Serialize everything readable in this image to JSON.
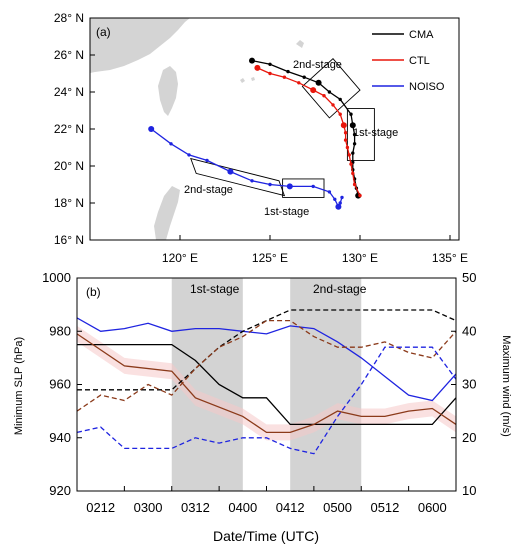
{
  "colors": {
    "cma": "#000000",
    "ctl": "#e8160c",
    "noiso": "#1f24e0",
    "land": "#d4d4d4",
    "stage_shade": "#d3d3d3",
    "slp_solid": "#8b3a1a",
    "ctl_band": "#f6c9c9"
  },
  "chart_data": [
    {
      "type": "map",
      "panel_label": "(a)",
      "xlim": [
        115,
        135.5
      ],
      "ylim": [
        16,
        28
      ],
      "xticks": [
        120,
        125,
        130,
        135
      ],
      "xtick_labels": [
        "120° E",
        "125° E",
        "130° E",
        "135° E"
      ],
      "yticks": [
        16,
        18,
        20,
        22,
        24,
        26,
        28
      ],
      "ytick_labels": [
        "16° N",
        "18° N",
        "20° N",
        "22° N",
        "24° N",
        "26° N",
        "28° N"
      ],
      "legend": [
        {
          "key": "cma",
          "label": "CMA"
        },
        {
          "key": "ctl",
          "label": "CTL"
        },
        {
          "key": "noiso",
          "label": "NOISO"
        }
      ],
      "stage_boxes": [
        {
          "label": "1st-stage",
          "corners": [
            [
              129.3,
              20.3
            ],
            [
              130.8,
              20.3
            ],
            [
              130.8,
              23.1
            ],
            [
              129.3,
              23.1
            ]
          ]
        },
        {
          "label": "2nd-stage",
          "corners": [
            [
              126.8,
              24.3
            ],
            [
              128.3,
              22.6
            ],
            [
              130.0,
              24.1
            ],
            [
              128.5,
              25.8
            ]
          ]
        },
        {
          "label": "2nd-stage",
          "corners": [
            [
              120.6,
              20.4
            ],
            [
              125.5,
              19.2
            ],
            [
              125.8,
              18.4
            ],
            [
              120.9,
              19.6
            ]
          ]
        },
        {
          "label": "1st-stage",
          "corners": [
            [
              125.7,
              19.3
            ],
            [
              128.0,
              19.3
            ],
            [
              128.0,
              18.3
            ],
            [
              125.7,
              18.3
            ]
          ]
        }
      ],
      "series": [
        {
          "key": "cma",
          "name": "CMA",
          "lon": [
            129.9,
            129.8,
            129.7,
            129.6,
            129.6,
            129.6,
            129.7,
            129.7,
            129.6,
            129.5,
            128.9,
            128.3,
            127.7,
            126.9,
            126.0,
            125.0,
            124.0
          ],
          "lat": [
            18.4,
            18.8,
            19.3,
            19.8,
            20.2,
            20.7,
            21.2,
            21.7,
            22.2,
            22.8,
            23.6,
            24.0,
            24.5,
            24.8,
            25.1,
            25.5,
            25.7
          ],
          "big_markers": [
            0,
            8,
            12,
            16
          ]
        },
        {
          "key": "ctl",
          "name": "CTL",
          "lon": [
            130.0,
            129.7,
            129.6,
            129.5,
            129.4,
            129.3,
            129.2,
            129.2,
            129.1,
            128.9,
            128.5,
            128.0,
            127.4,
            126.6,
            125.8,
            125.0,
            124.3
          ],
          "lat": [
            18.4,
            19.0,
            19.6,
            20.1,
            20.6,
            21.0,
            21.4,
            21.8,
            22.2,
            22.8,
            23.3,
            23.8,
            24.1,
            24.5,
            24.8,
            25.0,
            25.3
          ],
          "big_markers": [
            8,
            12,
            16
          ]
        },
        {
          "key": "noiso",
          "name": "NOISO",
          "lon": [
            129.0,
            128.9,
            128.8,
            128.6,
            128.3,
            127.4,
            126.1,
            125.0,
            124.0,
            122.8,
            121.5,
            120.5,
            119.5,
            118.4
          ],
          "lat": [
            18.3,
            18.0,
            17.8,
            18.2,
            18.6,
            18.9,
            18.9,
            19.0,
            19.2,
            19.7,
            20.3,
            20.6,
            21.2,
            22.0
          ],
          "big_markers": [
            2,
            6,
            9,
            13
          ]
        }
      ]
    },
    {
      "type": "line",
      "panel_label": "(b)",
      "xlabel": "Date/Time (UTC)",
      "ylabel": "Minimum SLP (hPa)",
      "ylabel_right": "Maximum wind (m/s)",
      "xticks": [
        0,
        4,
        8,
        12,
        16,
        20,
        24,
        28,
        32
      ],
      "xtick_labels": [
        "0212",
        "0300",
        "0312",
        "0400",
        "0412",
        "0500",
        "0512",
        "0600"
      ],
      "xtick_label_positions": [
        2,
        6,
        10,
        14,
        18,
        22,
        26,
        30
      ],
      "xlim": [
        0,
        32
      ],
      "ylim": [
        920,
        1000
      ],
      "yticks": [
        920,
        940,
        960,
        980,
        1000
      ],
      "ylim_right": [
        10,
        50
      ],
      "yticks_right": [
        10,
        20,
        30,
        40,
        50
      ],
      "stages": [
        {
          "label": "1st-stage",
          "x": [
            8,
            14
          ]
        },
        {
          "label": "2nd-stage",
          "x": [
            18,
            24
          ]
        }
      ],
      "series": [
        {
          "key": "cma_slp",
          "axis": "left",
          "dash": false,
          "color": "#000000",
          "x": [
            0,
            8,
            10,
            12,
            14,
            16,
            18,
            20,
            22,
            24,
            26,
            28,
            30,
            32
          ],
          "y": [
            975,
            975,
            969,
            960,
            955,
            955,
            945,
            945,
            945,
            945,
            945,
            945,
            945,
            955
          ]
        },
        {
          "key": "ctl_slp",
          "axis": "left",
          "dash": false,
          "color": "#8b3a1a",
          "x": [
            0,
            4,
            8,
            10,
            14,
            16,
            18,
            20,
            22,
            24,
            26,
            28,
            30,
            32
          ],
          "y": [
            979,
            967,
            965,
            955,
            948,
            942,
            942,
            945,
            950,
            948,
            948,
            950,
            951,
            945
          ]
        },
        {
          "key": "noiso_slp",
          "axis": "left",
          "dash": false,
          "color": "#1f24e0",
          "x": [
            0,
            2,
            4,
            6,
            8,
            10,
            12,
            14,
            16,
            18,
            20,
            22,
            24,
            26,
            28,
            30,
            32
          ],
          "y": [
            985,
            980,
            981,
            983,
            980,
            981,
            981,
            980,
            979,
            982,
            981,
            976,
            970,
            963,
            956,
            954,
            964
          ]
        },
        {
          "key": "cma_wind",
          "axis": "right",
          "dash": true,
          "color": "#000000",
          "x": [
            0,
            8,
            12,
            14,
            16,
            18,
            20,
            22,
            24,
            26,
            28,
            30,
            32
          ],
          "y": [
            29,
            29,
            37,
            40,
            42,
            44,
            44,
            44,
            44,
            44,
            44,
            44,
            42
          ]
        },
        {
          "key": "ctl_wind",
          "axis": "right",
          "dash": true,
          "color": "#8b3a1a",
          "x": [
            0,
            2,
            4,
            6,
            8,
            10,
            12,
            14,
            16,
            18,
            20,
            22,
            24,
            26,
            28,
            30,
            32
          ],
          "y": [
            25,
            28,
            27,
            30,
            28,
            33,
            37,
            39,
            42,
            42,
            39,
            37,
            37,
            38,
            36,
            35,
            40
          ]
        },
        {
          "key": "noiso_wind",
          "axis": "right",
          "dash": true,
          "color": "#1f24e0",
          "x": [
            0,
            2,
            4,
            6,
            8,
            10,
            12,
            14,
            16,
            18,
            20,
            22,
            24,
            26,
            28,
            30,
            32
          ],
          "y": [
            21,
            22,
            18,
            18,
            18,
            20,
            19,
            20,
            20,
            18,
            17,
            24,
            30,
            37,
            37,
            37,
            31
          ]
        }
      ]
    }
  ]
}
